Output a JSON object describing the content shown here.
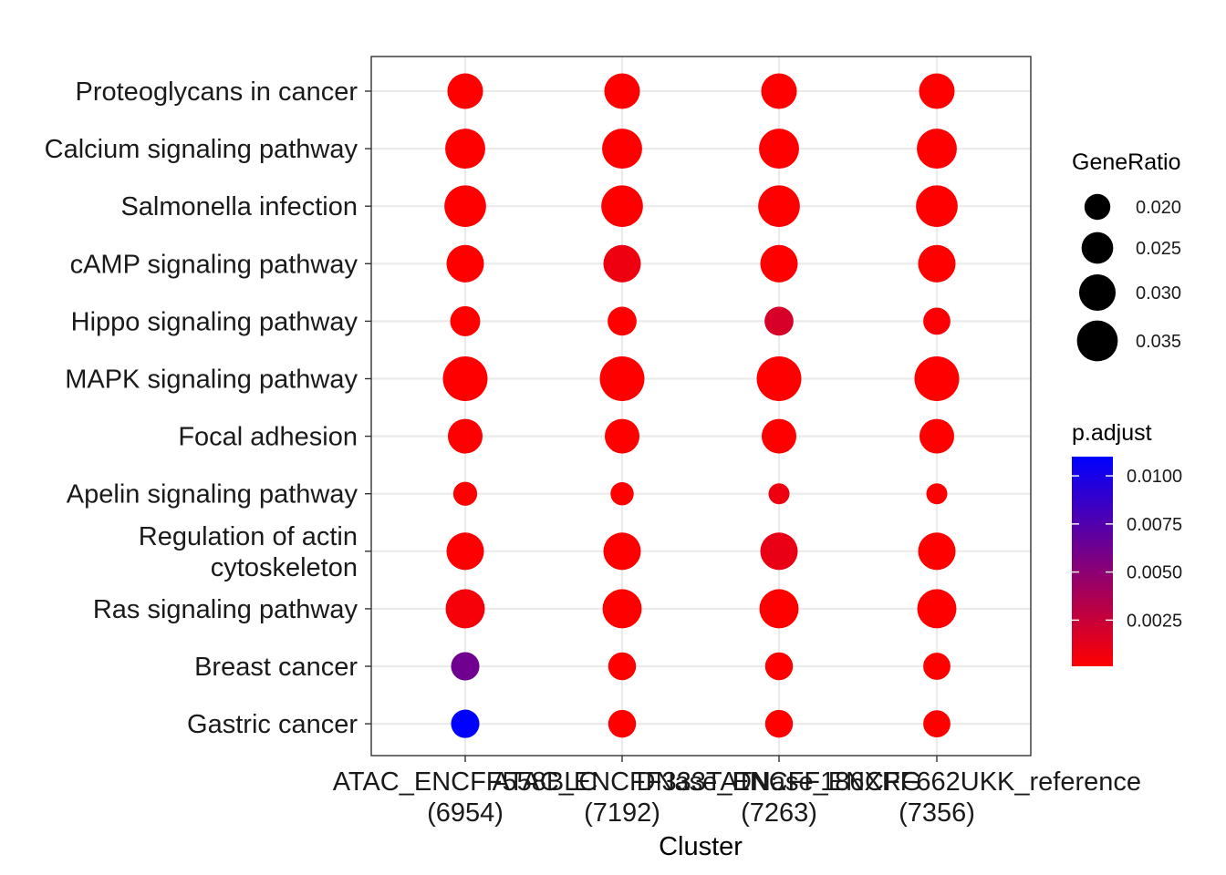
{
  "chart_data": {
    "type": "scatter",
    "xlabel": "Cluster",
    "ylabel": "",
    "clusters": [
      {
        "name": "ATAC_ENCFF558BLC",
        "count": "(6954)"
      },
      {
        "name": "ATAC_ENCFF333TAT",
        "count": "(7192)"
      },
      {
        "name": "DNase_ENCFF186XRG",
        "count": "(7263)"
      },
      {
        "name": "DNase_ENCFF662UKK_reference",
        "count": "(7356)"
      }
    ],
    "x_tick_text": [
      "ATAC_ENCFF558BLC",
      "ATAC_ENCFF333TAT",
      "DNase_ENCFF186XRG",
      "DNase_ENCFF662UKK_reference"
    ],
    "terms": [
      [
        "Proteoglycans in cancer"
      ],
      [
        "Calcium signaling pathway"
      ],
      [
        "Salmonella infection"
      ],
      [
        "cAMP signaling pathway"
      ],
      [
        "Hippo signaling pathway"
      ],
      [
        "MAPK signaling pathway"
      ],
      [
        "Focal adhesion"
      ],
      [
        "Apelin signaling pathway"
      ],
      [
        "Regulation of actin",
        "cytoskeleton"
      ],
      [
        "Ras signaling pathway"
      ],
      [
        "Breast cancer"
      ],
      [
        "Gastric cancer"
      ]
    ],
    "gene_ratio": [
      [
        0.029,
        0.029,
        0.029,
        0.029
      ],
      [
        0.034,
        0.034,
        0.034,
        0.034
      ],
      [
        0.036,
        0.036,
        0.036,
        0.036
      ],
      [
        0.031,
        0.031,
        0.031,
        0.031
      ],
      [
        0.0235,
        0.0225,
        0.0225,
        0.021
      ],
      [
        0.04,
        0.04,
        0.04,
        0.04
      ],
      [
        0.028,
        0.028,
        0.028,
        0.028
      ],
      [
        0.0185,
        0.018,
        0.0165,
        0.0165
      ],
      [
        0.031,
        0.031,
        0.031,
        0.031
      ],
      [
        0.033,
        0.033,
        0.033,
        0.033
      ],
      [
        0.022,
        0.0215,
        0.0215,
        0.021
      ],
      [
        0.022,
        0.0215,
        0.0215,
        0.021
      ]
    ],
    "p_adjust": [
      [
        0.0001,
        0.0001,
        0.0001,
        0.0001
      ],
      [
        0.0001,
        0.0001,
        0.0001,
        0.0001
      ],
      [
        0.0001,
        0.0001,
        0.0001,
        0.0001
      ],
      [
        0.0001,
        0.0008,
        0.0001,
        0.0001
      ],
      [
        0.0001,
        0.0001,
        0.0018,
        0.0003
      ],
      [
        0.0001,
        0.0001,
        0.0001,
        0.0001
      ],
      [
        0.0002,
        0.0001,
        0.0001,
        0.0001
      ],
      [
        0.0001,
        0.0001,
        0.0008,
        0.0001
      ],
      [
        0.0002,
        0.0001,
        0.001,
        0.0001
      ],
      [
        0.0005,
        0.0001,
        0.0001,
        0.0001
      ],
      [
        0.0062,
        0.0001,
        0.0001,
        0.0001
      ],
      [
        0.011,
        0.0001,
        0.0001,
        0.0001
      ]
    ],
    "size_legend": {
      "title": "GeneRatio",
      "breaks": [
        0.02,
        0.025,
        0.03,
        0.035
      ],
      "labels": [
        "0.020",
        "0.025",
        "0.030",
        "0.035"
      ]
    },
    "color_legend": {
      "title": "p.adjust",
      "min": 0.0001,
      "max": 0.011,
      "low_color": "#ff0000",
      "high_color": "#0000ff",
      "breaks": [
        0.01,
        0.0075,
        0.005,
        0.0025
      ],
      "labels": [
        "0.0100",
        "0.0075",
        "0.0050",
        "0.0025"
      ]
    },
    "grid": true,
    "legend_position": "right"
  }
}
